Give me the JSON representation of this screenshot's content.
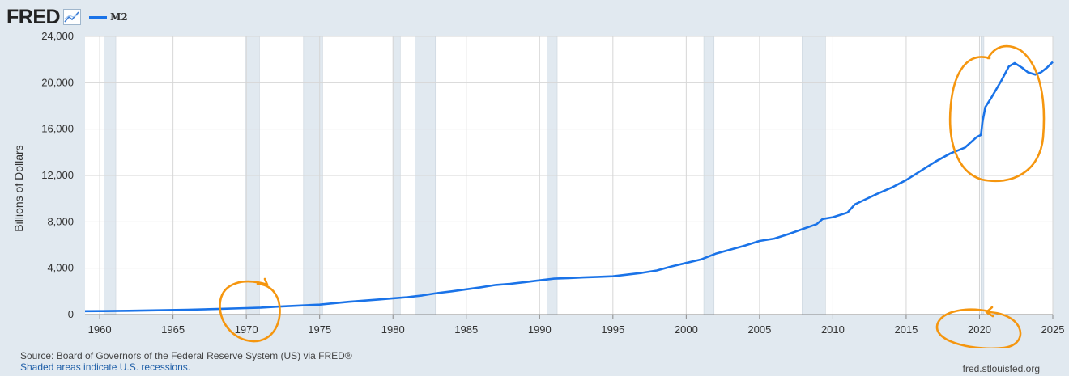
{
  "header": {
    "logo_text": "FRED",
    "legend_label": "M2",
    "legend_color": "#1a73e8"
  },
  "footer": {
    "source": "Source: Board of Governors of the Federal Reserve System (US) via FRED®",
    "recession_note": "Shaded areas indicate U.S. recessions.",
    "site": "fred.stlouisfed.org"
  },
  "chart_data": {
    "type": "line",
    "title": "",
    "xlabel": "",
    "ylabel": "Billions of Dollars",
    "xlim": [
      1959.0,
      2025.0
    ],
    "ylim": [
      0,
      24000
    ],
    "x_ticks": [
      1960,
      1965,
      1970,
      1975,
      1980,
      1985,
      1990,
      1995,
      2000,
      2005,
      2010,
      2015,
      2020,
      2025
    ],
    "y_ticks": [
      0,
      4000,
      8000,
      12000,
      16000,
      20000,
      24000
    ],
    "y_tick_labels": [
      "0",
      "4,000",
      "8,000",
      "12,000",
      "16,000",
      "20,000",
      "24,000"
    ],
    "grid": true,
    "line_color": "#1a73e8",
    "recession_color": "#e1e9f0",
    "recessions": [
      [
        1960.3,
        1961.1
      ],
      [
        1969.9,
        1970.9
      ],
      [
        1973.9,
        1975.2
      ],
      [
        1980.0,
        1980.5
      ],
      [
        1981.5,
        1982.9
      ],
      [
        1990.5,
        1991.2
      ],
      [
        2001.2,
        2001.9
      ],
      [
        2007.9,
        2009.5
      ],
      [
        2020.1,
        2020.3
      ]
    ],
    "series": [
      {
        "name": "M2",
        "points": [
          [
            1959.0,
            290
          ],
          [
            1960.0,
            300
          ],
          [
            1962.0,
            330
          ],
          [
            1964.0,
            370
          ],
          [
            1966.0,
            420
          ],
          [
            1968.0,
            480
          ],
          [
            1970.0,
            560
          ],
          [
            1971.0,
            600
          ],
          [
            1972.0,
            680
          ],
          [
            1973.0,
            740
          ],
          [
            1975.0,
            860
          ],
          [
            1977.0,
            1100
          ],
          [
            1979.0,
            1300
          ],
          [
            1980.0,
            1400
          ],
          [
            1981.0,
            1500
          ],
          [
            1982.0,
            1650
          ],
          [
            1983.0,
            1850
          ],
          [
            1984.0,
            2000
          ],
          [
            1985.0,
            2180
          ],
          [
            1986.0,
            2350
          ],
          [
            1987.0,
            2550
          ],
          [
            1988.0,
            2650
          ],
          [
            1989.0,
            2800
          ],
          [
            1990.0,
            2950
          ],
          [
            1991.0,
            3100
          ],
          [
            1992.0,
            3150
          ],
          [
            1993.0,
            3200
          ],
          [
            1994.0,
            3250
          ],
          [
            1995.0,
            3300
          ],
          [
            1996.0,
            3450
          ],
          [
            1997.0,
            3600
          ],
          [
            1998.0,
            3800
          ],
          [
            1999.0,
            4150
          ],
          [
            2000.0,
            4450
          ],
          [
            2001.0,
            4750
          ],
          [
            2002.0,
            5250
          ],
          [
            2003.0,
            5600
          ],
          [
            2004.0,
            5950
          ],
          [
            2005.0,
            6350
          ],
          [
            2006.0,
            6550
          ],
          [
            2007.0,
            6950
          ],
          [
            2008.0,
            7400
          ],
          [
            2008.9,
            7800
          ],
          [
            2009.3,
            8250
          ],
          [
            2010.0,
            8400
          ],
          [
            2011.0,
            8800
          ],
          [
            2011.5,
            9500
          ],
          [
            2012.0,
            9800
          ],
          [
            2013.0,
            10400
          ],
          [
            2014.0,
            10950
          ],
          [
            2015.0,
            11600
          ],
          [
            2016.0,
            12400
          ],
          [
            2017.0,
            13200
          ],
          [
            2018.0,
            13900
          ],
          [
            2019.0,
            14400
          ],
          [
            2019.8,
            15300
          ],
          [
            2020.1,
            15500
          ],
          [
            2020.2,
            16600
          ],
          [
            2020.4,
            17900
          ],
          [
            2020.8,
            18700
          ],
          [
            2021.5,
            20200
          ],
          [
            2022.0,
            21400
          ],
          [
            2022.4,
            21700
          ],
          [
            2022.9,
            21300
          ],
          [
            2023.3,
            20900
          ],
          [
            2023.8,
            20700
          ],
          [
            2024.2,
            20900
          ],
          [
            2024.6,
            21300
          ],
          [
            2025.0,
            21800
          ]
        ]
      }
    ],
    "annotations": [
      {
        "type": "circle",
        "note": "hand-drawn orange circle around 1970",
        "color": "#f5960f"
      },
      {
        "type": "circle",
        "note": "hand-drawn orange circle around 2020 surge",
        "color": "#f5960f"
      },
      {
        "type": "circle",
        "note": "hand-drawn orange circle around 2020 axis label",
        "color": "#f5960f"
      }
    ]
  }
}
